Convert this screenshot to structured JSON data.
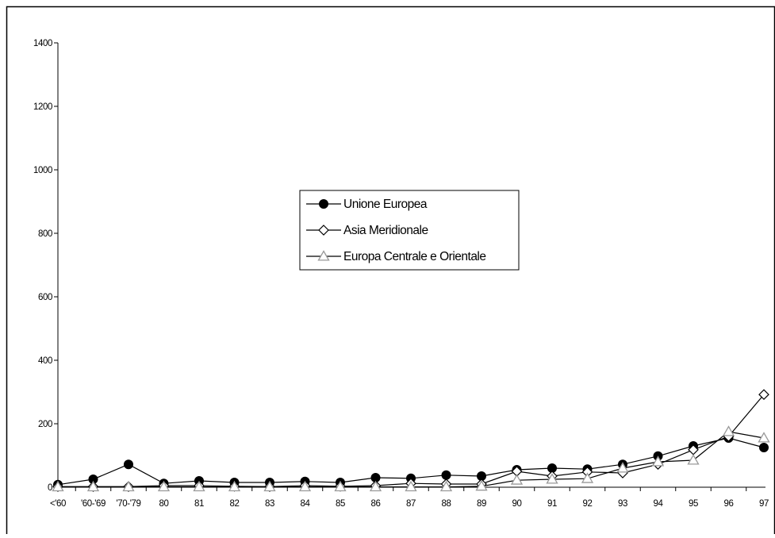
{
  "chart_data": {
    "type": "line",
    "categories": [
      "<'60",
      "'60-'69",
      "'70-'79",
      "80",
      "81",
      "82",
      "83",
      "84",
      "85",
      "86",
      "87",
      "88",
      "89",
      "90",
      "91",
      "92",
      "93",
      "94",
      "95",
      "96",
      "97"
    ],
    "ylim": [
      0,
      1400
    ],
    "yticks": [
      0,
      200,
      400,
      600,
      800,
      1000,
      1200,
      1400
    ],
    "grid": false,
    "legend_position": "center",
    "series": [
      {
        "name": "Unione Europea",
        "marker": "filled-circle",
        "color": "#000000",
        "values": [
          8,
          25,
          72,
          12,
          20,
          15,
          15,
          18,
          15,
          30,
          28,
          38,
          35,
          55,
          60,
          57,
          72,
          98,
          130,
          155,
          125
        ]
      },
      {
        "name": "Asia Meridionale",
        "marker": "open-diamond",
        "color": "#000000",
        "values": [
          2,
          2,
          2,
          5,
          5,
          3,
          2,
          5,
          3,
          5,
          12,
          10,
          10,
          50,
          35,
          48,
          45,
          72,
          118,
          160,
          292
        ]
      },
      {
        "name": "Europa Centrale e Orientale",
        "marker": "open-triangle",
        "color": "#999999",
        "values": [
          1,
          1,
          1,
          1,
          1,
          1,
          1,
          1,
          1,
          1,
          1,
          1,
          3,
          22,
          25,
          27,
          60,
          80,
          85,
          175,
          155
        ]
      }
    ]
  }
}
